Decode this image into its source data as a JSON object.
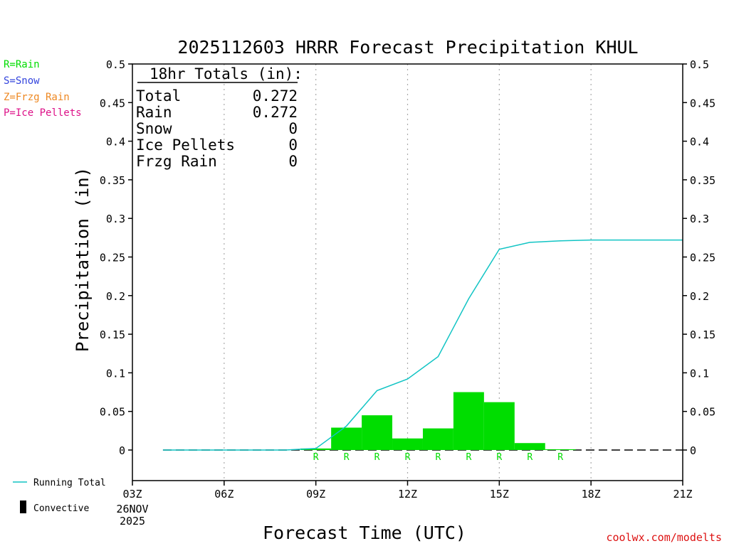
{
  "chart_data": {
    "type": "bar",
    "title": "2025112603 HRRR Forecast Precipitation KHUL",
    "xlabel": "Forecast Time (UTC)",
    "ylabel": "Precipitation (in)",
    "ylim": [
      -0.04,
      0.5
    ],
    "yticks": [
      0,
      0.05,
      0.1,
      0.15,
      0.2,
      0.25,
      0.3,
      0.35,
      0.4,
      0.45,
      0.5
    ],
    "ytick_labels": [
      "0",
      "0.05",
      "0.1",
      "0.15",
      "0.2",
      "0.25",
      "0.3",
      "0.35",
      "0.4",
      "0.45",
      "0.5"
    ],
    "xlim_hours": [
      3,
      21
    ],
    "xticks": [
      {
        "hour": 3,
        "label": "03Z"
      },
      {
        "hour": 6,
        "label": "06Z"
      },
      {
        "hour": 9,
        "label": "09Z"
      },
      {
        "hour": 12,
        "label": "12Z"
      },
      {
        "hour": 15,
        "label": "15Z"
      },
      {
        "hour": 18,
        "label": "18Z"
      },
      {
        "hour": 21,
        "label": "21Z"
      }
    ],
    "x_date_line1": "26NOV",
    "x_date_line2": "2025",
    "grid_vertical": true,
    "bars": [
      {
        "hour": 9,
        "value": 0.002,
        "type": "R"
      },
      {
        "hour": 10,
        "value": 0.029,
        "type": "R"
      },
      {
        "hour": 11,
        "value": 0.045,
        "type": "R"
      },
      {
        "hour": 12,
        "value": 0.015,
        "type": "R"
      },
      {
        "hour": 13,
        "value": 0.028,
        "type": "R"
      },
      {
        "hour": 14,
        "value": 0.075,
        "type": "R"
      },
      {
        "hour": 15,
        "value": 0.062,
        "type": "R"
      },
      {
        "hour": 16,
        "value": 0.009,
        "type": "R"
      },
      {
        "hour": 17,
        "value": 0.001,
        "type": "R"
      }
    ],
    "running_total": {
      "name": "Running Total",
      "x": [
        4,
        5,
        6,
        7,
        8,
        9,
        10,
        11,
        12,
        13,
        14,
        15,
        16,
        17,
        18,
        19,
        20,
        21
      ],
      "y": [
        0,
        0,
        0,
        0,
        0,
        0.002,
        0.031,
        0.077,
        0.092,
        0.121,
        0.196,
        0.26,
        0.269,
        0.271,
        0.272,
        0.272,
        0.272,
        0.272
      ]
    },
    "colors": {
      "rain": "#00dd00",
      "snow": "#3344dd",
      "frzg": "#ee8822",
      "ice": "#dd1188",
      "running_total": "#11c4c4",
      "convective": "#000000",
      "grid": "#aaaaaa"
    }
  },
  "totals_box": {
    "header": "18hr Totals (in):",
    "rows": [
      {
        "label": "Total",
        "value": "0.272"
      },
      {
        "label": "Rain",
        "value": "0.272"
      },
      {
        "label": "Snow",
        "value": "0"
      },
      {
        "label": "Ice Pellets",
        "value": "0"
      },
      {
        "label": "Frzg Rain",
        "value": "0"
      }
    ]
  },
  "type_legend": [
    "R=Rain",
    "S=Snow",
    "Z=Frzg Rain",
    "P=Ice Pellets"
  ],
  "bottom_legend": {
    "running_total": "Running Total",
    "convective": "Convective"
  },
  "credit": "coolwx.com/modelts"
}
